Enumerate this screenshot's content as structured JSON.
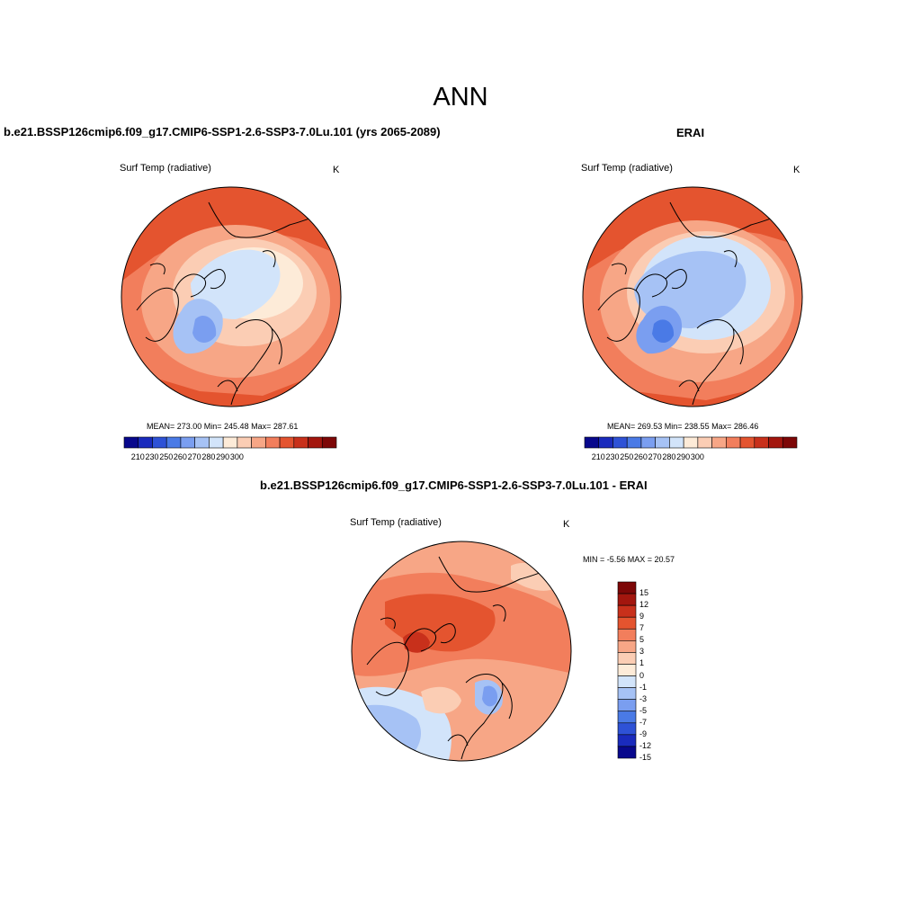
{
  "main_title": "ANN",
  "panels": [
    {
      "title": "b.e21.BSSP126cmip6.f09_g17.CMIP6-SSP1-2.6-SSP3-7.0Lu.101 (yrs 2065-2089)",
      "variable": "Surf Temp (radiative)",
      "units": "K",
      "stats": "MEAN= 273.00  Min= 245.48  Max= 287.61",
      "colorbar_ticks": [
        "210",
        "230",
        "250",
        "260",
        "270",
        "280",
        "290",
        "300"
      ]
    },
    {
      "title": "ERAI",
      "variable": "Surf Temp (radiative)",
      "units": "K",
      "stats": "MEAN= 269.53  Min= 238.55  Max= 286.46",
      "colorbar_ticks": [
        "210",
        "230",
        "250",
        "260",
        "270",
        "280",
        "290",
        "300"
      ]
    },
    {
      "title": "b.e21.BSSP126cmip6.f09_g17.CMIP6-SSP1-2.6-SSP3-7.0Lu.101 - ERAI",
      "variable": "Surf Temp (radiative)",
      "units": "K",
      "stats": "MIN =  -5.56 MAX =  20.57",
      "colorbar_ticks": [
        "15",
        "12",
        "9",
        "7",
        "5",
        "3",
        "1",
        "0",
        "-1",
        "-3",
        "-5",
        "-7",
        "-9",
        "-12",
        "-15"
      ]
    }
  ],
  "colors": {
    "abs_scale": [
      "#08088c",
      "#1a2bbd",
      "#2e52d6",
      "#4a7ae6",
      "#7a9ef0",
      "#a6c2f5",
      "#d2e4fa",
      "#fdebd8",
      "#fbcdb4",
      "#f7a686",
      "#f27e5c",
      "#e4542f",
      "#c8301b",
      "#a3160e",
      "#7d0707"
    ],
    "diff_scale": [
      "#7d0707",
      "#a3160e",
      "#c8301b",
      "#e4542f",
      "#f27e5c",
      "#f7a686",
      "#fbcdb4",
      "#fdebd8",
      "#d2e4fa",
      "#a6c2f5",
      "#7a9ef0",
      "#4a7ae6",
      "#2e52d6",
      "#1a2bbd",
      "#08088c"
    ]
  }
}
